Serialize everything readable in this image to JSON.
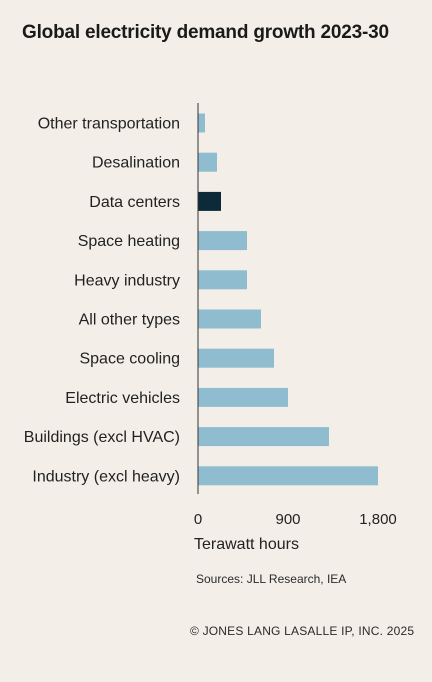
{
  "title": "Global electricity demand growth 2023-30",
  "sources": "Sources: JLL Research, IEA",
  "copyright": "© JONES LANG LASALLE IP, INC. 2025",
  "colors": {
    "bar": "#8fbccf",
    "highlight": "#0d2a3a",
    "axis": "#333333",
    "background": "#f3efe8"
  },
  "chart_data": {
    "type": "bar",
    "orientation": "horizontal",
    "title": "Global electricity demand growth 2023-30",
    "xlabel": "Terawatt hours",
    "ylabel": "",
    "xlim": [
      0,
      1800
    ],
    "xticks": [
      0,
      900,
      1800
    ],
    "xtick_labels": [
      "0",
      "900",
      "1,800"
    ],
    "categories": [
      "Other transportation",
      "Desalination",
      "Data centers",
      "Space heating",
      "Heavy industry",
      "All other types",
      "Space cooling",
      "Electric vehicles",
      "Buildings (excl HVAC)",
      "Industry (excl heavy)"
    ],
    "values": [
      70,
      190,
      230,
      490,
      490,
      630,
      760,
      900,
      1310,
      1800
    ],
    "highlighted": [
      "Data centers"
    ],
    "grid": false
  }
}
